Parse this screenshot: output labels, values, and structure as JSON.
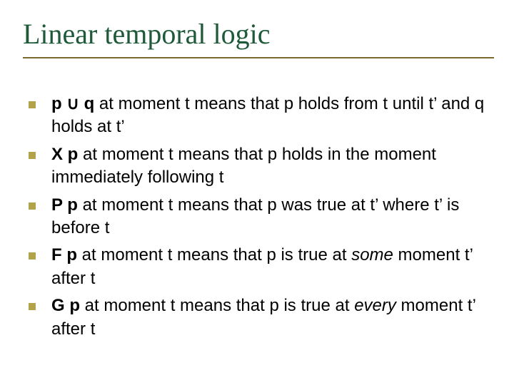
{
  "slide": {
    "title": "Linear temporal logic",
    "title_color": "#1e5a3a",
    "title_rule_color": "#7a6a2e",
    "title_fontsize": 40,
    "background_color": "#ffffff",
    "bullet_marker_color": "#b2a24a",
    "body_fontsize": 24,
    "body_color": "#000000",
    "items": [
      "<b>p ∪ q</b> at moment t means that p holds from t until t’ and q holds at t’",
      "<b>X p</b> at moment t means that p holds in the moment immediately following t",
      "<b>P p</b> at moment t means that p was true at t’ where t’ is before t",
      "<b>F p</b> at moment t means that p is true at <i>some</i> moment t’ after t",
      "<b>G p</b> at moment t means that p is true at <i>every</i> moment t’ after t"
    ]
  }
}
